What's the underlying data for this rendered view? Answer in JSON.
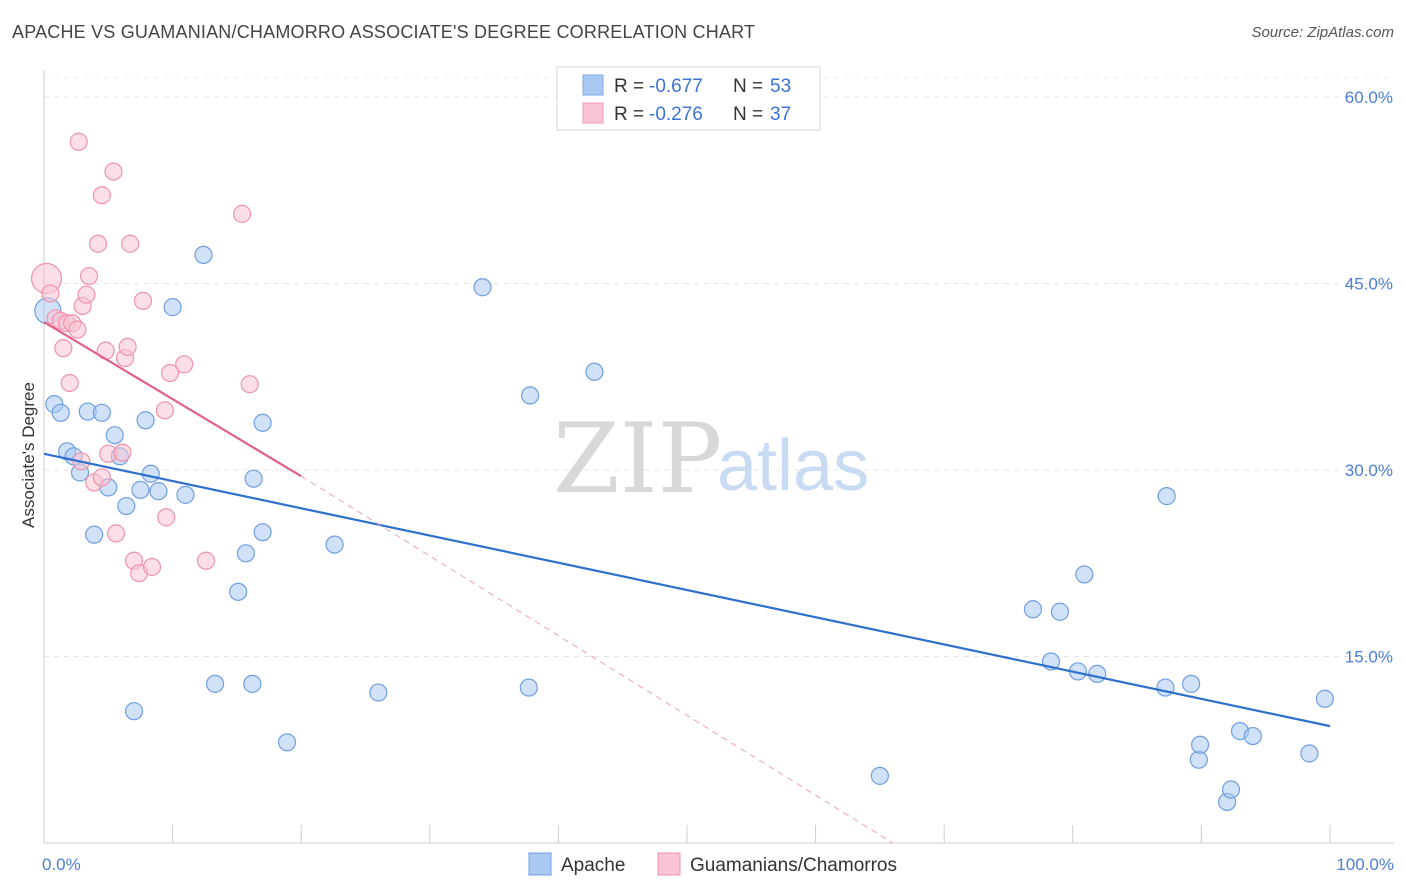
{
  "title": "APACHE VS GUAMANIAN/CHAMORRO ASSOCIATE'S DEGREE CORRELATION CHART",
  "source": "Source: ZipAtlas.com",
  "watermark": {
    "zip": "ZIP",
    "atlas": "atlas"
  },
  "legend": {
    "rows": [
      {
        "r_label": "R =",
        "r_value": "-0.677",
        "n_label": "N =",
        "n_value": "53",
        "color": "#a9c8f2",
        "stroke": "#7eaae6"
      },
      {
        "r_label": "R =",
        "r_value": "-0.276",
        "n_label": "N =",
        "n_value": "37",
        "color": "#f8c3d2",
        "stroke": "#f09ab3"
      }
    ]
  },
  "chart_data": {
    "type": "scatter",
    "xlabel": "",
    "ylabel": "Associate's Degree",
    "x_tick_labels": [
      "0.0%",
      "100.0%"
    ],
    "y_tick_labels": [
      "15.0%",
      "30.0%",
      "45.0%",
      "60.0%"
    ],
    "y_ticks": [
      15,
      30,
      45,
      60
    ],
    "xlim": [
      0,
      100
    ],
    "ylim": [
      0,
      60
    ],
    "grid": true,
    "series": [
      {
        "name": "Apache",
        "color": "#a9c8f2",
        "stroke": "#6f9fe0",
        "line_color": "#2f6fce",
        "trend": {
          "x0": 0,
          "y0": 31.3,
          "x1": 100,
          "y1": 9.4
        },
        "points": [
          [
            0.3,
            42.8
          ],
          [
            0.8,
            35.3
          ],
          [
            1.3,
            34.6
          ],
          [
            1.8,
            31.5
          ],
          [
            2.3,
            31.1
          ],
          [
            2.8,
            29.8
          ],
          [
            3.4,
            34.7
          ],
          [
            3.9,
            24.8
          ],
          [
            4.5,
            34.6
          ],
          [
            5.0,
            28.6
          ],
          [
            5.5,
            32.8
          ],
          [
            5.9,
            31.1
          ],
          [
            6.4,
            27.1
          ],
          [
            7.0,
            10.6
          ],
          [
            7.5,
            28.4
          ],
          [
            7.9,
            34.0
          ],
          [
            8.3,
            29.7
          ],
          [
            8.9,
            28.3
          ],
          [
            10.0,
            43.1
          ],
          [
            11.0,
            28.0
          ],
          [
            12.4,
            47.3
          ],
          [
            13.3,
            12.8
          ],
          [
            15.1,
            20.2
          ],
          [
            15.7,
            23.3
          ],
          [
            16.3,
            29.3
          ],
          [
            17.0,
            25.0
          ],
          [
            16.2,
            12.8
          ],
          [
            17.0,
            33.8
          ],
          [
            18.9,
            8.1
          ],
          [
            22.6,
            24.0
          ],
          [
            26.0,
            12.1
          ],
          [
            34.1,
            44.7
          ],
          [
            37.7,
            12.5
          ],
          [
            37.8,
            36.0
          ],
          [
            42.8,
            37.9
          ],
          [
            65.0,
            5.4
          ],
          [
            76.9,
            18.8
          ],
          [
            78.3,
            14.6
          ],
          [
            79.0,
            18.6
          ],
          [
            80.4,
            13.8
          ],
          [
            80.9,
            21.6
          ],
          [
            81.9,
            13.6
          ],
          [
            87.3,
            27.9
          ],
          [
            87.2,
            12.5
          ],
          [
            89.8,
            6.7
          ],
          [
            89.9,
            7.9
          ],
          [
            89.2,
            12.8
          ],
          [
            92.0,
            3.3
          ],
          [
            92.3,
            4.3
          ],
          [
            93.0,
            9.0
          ],
          [
            94.0,
            8.6
          ],
          [
            98.4,
            7.2
          ],
          [
            99.6,
            11.6
          ]
        ]
      },
      {
        "name": "Guamanians/Chamorros",
        "color": "#f8c3d2",
        "stroke": "#ef93ad",
        "line_color": "#e0608a",
        "trend": {
          "x0": 0,
          "y0": 41.9,
          "x1": 20,
          "y1": 29.5
        },
        "trend_ext": {
          "x0": 20,
          "y0": 29.5,
          "x1": 66,
          "y1": 0
        },
        "points": [
          [
            0.2,
            45.4
          ],
          [
            0.5,
            44.2
          ],
          [
            0.9,
            42.2
          ],
          [
            1.3,
            42.0
          ],
          [
            1.5,
            39.8
          ],
          [
            1.8,
            41.8
          ],
          [
            2.0,
            37.0
          ],
          [
            2.2,
            41.8
          ],
          [
            2.6,
            41.3
          ],
          [
            2.9,
            30.7
          ],
          [
            2.7,
            56.4
          ],
          [
            3.0,
            43.2
          ],
          [
            3.3,
            44.1
          ],
          [
            3.5,
            45.6
          ],
          [
            3.9,
            29.0
          ],
          [
            4.2,
            48.2
          ],
          [
            4.5,
            29.4
          ],
          [
            4.5,
            52.1
          ],
          [
            4.8,
            39.6
          ],
          [
            5.0,
            31.3
          ],
          [
            5.4,
            54.0
          ],
          [
            5.6,
            24.9
          ],
          [
            6.1,
            31.4
          ],
          [
            6.3,
            39.0
          ],
          [
            6.5,
            39.9
          ],
          [
            6.7,
            48.2
          ],
          [
            7.0,
            22.7
          ],
          [
            7.4,
            21.7
          ],
          [
            7.7,
            43.6
          ],
          [
            8.4,
            22.2
          ],
          [
            9.4,
            34.8
          ],
          [
            9.5,
            26.2
          ],
          [
            9.8,
            37.8
          ],
          [
            10.9,
            38.5
          ],
          [
            12.6,
            22.7
          ],
          [
            15.4,
            50.6
          ],
          [
            16.0,
            36.9
          ]
        ]
      }
    ]
  },
  "bottom_legend": [
    {
      "label": "Apache",
      "color": "#a9c8f2",
      "stroke": "#6f9fe0"
    },
    {
      "label": "Guamanians/Chamorros",
      "color": "#f8c3d2",
      "stroke": "#ef93ad"
    }
  ]
}
